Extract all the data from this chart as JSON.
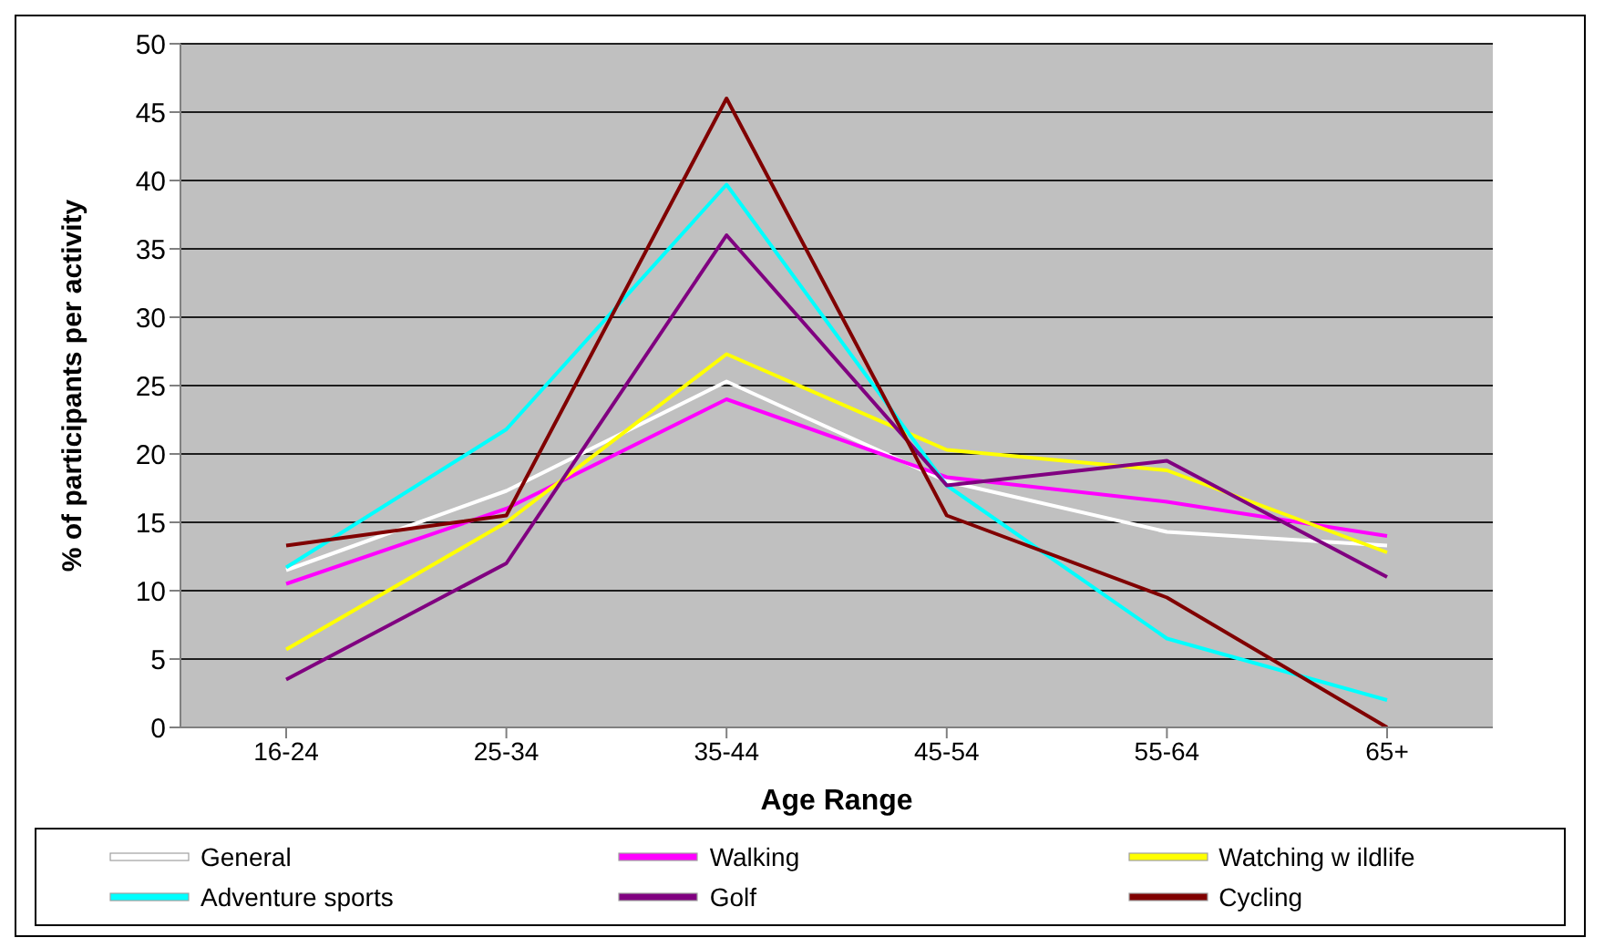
{
  "chart_data": {
    "type": "line",
    "xlabel": "Age Range",
    "ylabel": "% of participants per activity",
    "categories": [
      "16-24",
      "25-34",
      "35-44",
      "45-54",
      "55-64",
      "65+"
    ],
    "series": [
      {
        "name": "General",
        "color": "#ffffff",
        "values": [
          11.5,
          17.3,
          25.3,
          18,
          14.3,
          13.3
        ]
      },
      {
        "name": "Walking",
        "color": "#ff00ff",
        "values": [
          10.5,
          16,
          24,
          18.3,
          16.5,
          14
        ]
      },
      {
        "name": "Watching w ildlife",
        "color": "#ffff00",
        "values": [
          5.7,
          15,
          27.3,
          20.3,
          18.8,
          12.8
        ]
      },
      {
        "name": "Adventure sports",
        "color": "#00ffff",
        "values": [
          11.7,
          21.8,
          39.7,
          17.7,
          6.5,
          2
        ]
      },
      {
        "name": "Golf",
        "color": "#800080",
        "values": [
          3.5,
          12,
          36,
          17.7,
          19.5,
          11
        ]
      },
      {
        "name": "Cycling",
        "color": "#800000",
        "values": [
          13.3,
          15.5,
          46,
          15.5,
          9.5,
          0
        ]
      }
    ],
    "ylim": [
      0,
      50
    ],
    "yticks": [
      0,
      5,
      10,
      15,
      20,
      25,
      30,
      35,
      40,
      45,
      50
    ],
    "grid": "y",
    "legend": "bottom",
    "marker": "none",
    "line_style": "solid"
  }
}
